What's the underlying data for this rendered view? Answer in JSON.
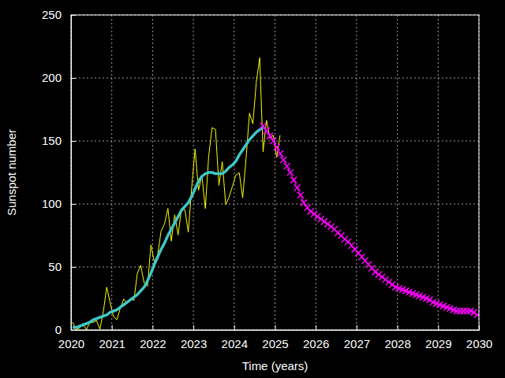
{
  "chart_data": {
    "type": "line",
    "x_label": "Time (years)",
    "y_label": "Sunspot number",
    "xlim": [
      2020,
      2030
    ],
    "ylim": [
      0,
      250
    ],
    "xticks": [
      2020,
      2021,
      2022,
      2023,
      2024,
      2025,
      2026,
      2027,
      2028,
      2029,
      2030
    ],
    "yticks": [
      0,
      50,
      100,
      150,
      200,
      250
    ],
    "grid": true,
    "series": [
      {
        "color": "#ffff00",
        "line_style": "solid",
        "x": [
          2020.042,
          2020.125,
          2020.208,
          2020.292,
          2020.375,
          2020.458,
          2020.542,
          2020.625,
          2020.708,
          2020.792,
          2020.875,
          2020.958,
          2021.042,
          2021.125,
          2021.208,
          2021.292,
          2021.375,
          2021.458,
          2021.542,
          2021.625,
          2021.708,
          2021.792,
          2021.875,
          2021.958,
          2022.042,
          2022.125,
          2022.208,
          2022.292,
          2022.375,
          2022.458,
          2022.542,
          2022.625,
          2022.708,
          2022.792,
          2022.875,
          2022.958,
          2023.042,
          2023.125,
          2023.208,
          2023.292,
          2023.375,
          2023.458,
          2023.542,
          2023.625,
          2023.708,
          2023.792,
          2023.875,
          2023.958,
          2024.042,
          2024.125,
          2024.208,
          2024.292,
          2024.375,
          2024.458,
          2024.542,
          2024.625,
          2024.708,
          2024.792,
          2024.875,
          2024.958,
          2025.042,
          2025.125
        ],
        "values": [
          6.2,
          0.2,
          1.5,
          5.2,
          0.2,
          5.8,
          6.1,
          7.5,
          0.6,
          14.4,
          34.0,
          21.8,
          10.4,
          8.2,
          17.2,
          24.5,
          21.2,
          25.0,
          23.4,
          44.8,
          51.3,
          37.4,
          34.8,
          67.5,
          54.0,
          59.7,
          78.5,
          84.1,
          96.5,
          70.5,
          91.4,
          75.4,
          96.3,
          95.4,
          77.6,
          113.1,
          143.6,
          110.9,
          122.6,
          96.4,
          137.9,
          160.5,
          159.1,
          114.8,
          133.6,
          99.4,
          105.4,
          114.2,
          123.0,
          124.7,
          104.9,
          136.5,
          172.1,
          163.6,
          196.7,
          216.0,
          141.4,
          166.4,
          152.5,
          154.5,
          137.0,
          154.6
        ]
      },
      {
        "color": "#40c8c8",
        "line_style": "solid",
        "x": [
          2020.042,
          2020.125,
          2020.208,
          2020.292,
          2020.375,
          2020.458,
          2020.542,
          2020.625,
          2020.708,
          2020.792,
          2020.875,
          2020.958,
          2021.042,
          2021.125,
          2021.208,
          2021.292,
          2021.375,
          2021.458,
          2021.542,
          2021.625,
          2021.708,
          2021.792,
          2021.875,
          2021.958,
          2022.042,
          2022.125,
          2022.208,
          2022.292,
          2022.375,
          2022.458,
          2022.542,
          2022.625,
          2022.708,
          2022.792,
          2022.875,
          2022.958,
          2023.042,
          2023.125,
          2023.208,
          2023.292,
          2023.375,
          2023.458,
          2023.542,
          2023.625,
          2023.708,
          2023.792,
          2023.875,
          2023.958,
          2024.042,
          2024.125,
          2024.208,
          2024.292,
          2024.375,
          2024.458,
          2024.542,
          2024.625,
          2024.708
        ],
        "values": [
          2,
          2,
          3,
          4,
          5,
          6,
          8,
          9,
          10,
          11,
          12,
          14,
          15,
          16,
          18,
          20,
          22,
          24,
          26,
          28,
          31,
          34,
          39,
          45,
          52,
          58,
          64,
          69,
          75,
          80,
          85,
          90,
          95,
          98,
          101,
          106,
          112,
          118,
          122,
          124,
          125,
          125,
          124,
          124,
          124,
          126,
          129,
          131,
          134,
          139,
          143,
          147,
          151,
          154,
          157,
          159,
          161
        ]
      },
      {
        "color": "#ff00ff",
        "line_style": "solid",
        "marker": "x",
        "x": [
          2024.708,
          2024.792,
          2024.875,
          2024.958,
          2025.042,
          2025.125,
          2025.208,
          2025.292,
          2025.375,
          2025.458,
          2025.542,
          2025.625,
          2025.708,
          2025.792,
          2025.875,
          2025.958,
          2026.042,
          2026.125,
          2026.208,
          2026.292,
          2026.375,
          2026.458,
          2026.542,
          2026.625,
          2026.708,
          2026.792,
          2026.875,
          2026.958,
          2027.042,
          2027.125,
          2027.208,
          2027.292,
          2027.375,
          2027.458,
          2027.542,
          2027.625,
          2027.708,
          2027.792,
          2027.875,
          2027.958,
          2028.042,
          2028.125,
          2028.208,
          2028.292,
          2028.375,
          2028.458,
          2028.542,
          2028.625,
          2028.708,
          2028.792,
          2028.875,
          2028.958,
          2029.042,
          2029.125,
          2029.208,
          2029.292,
          2029.375,
          2029.458,
          2029.542,
          2029.625,
          2029.708,
          2029.792,
          2029.875,
          2029.958
        ],
        "values": [
          162,
          158,
          154,
          150,
          145,
          140,
          135,
          130,
          125,
          119,
          113,
          107,
          101,
          97,
          94,
          92,
          90,
          88,
          86,
          84,
          82,
          80,
          77,
          75,
          72,
          70,
          67,
          64,
          61,
          58,
          55,
          52,
          49,
          46,
          44,
          42,
          40,
          38,
          36,
          34,
          33,
          32,
          31,
          30,
          29,
          28,
          27,
          26,
          25,
          24,
          22,
          21,
          20,
          19,
          18,
          17,
          16,
          15,
          15,
          15,
          15,
          15,
          14,
          12
        ]
      }
    ]
  }
}
